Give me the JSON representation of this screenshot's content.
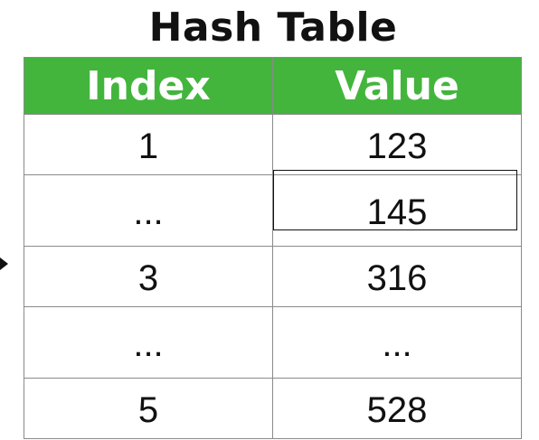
{
  "title": "Hash Table",
  "colors": {
    "header_bg": "#43b53d",
    "header_text": "#ffffff",
    "border": "#8a8a8a",
    "text": "#111111"
  },
  "table": {
    "headers": [
      "Index",
      "Value"
    ],
    "rows": [
      {
        "index": "1",
        "value": "123"
      },
      {
        "index": "...",
        "value": "145"
      },
      {
        "index": "3",
        "value": "316"
      },
      {
        "index": "...",
        "value": "..."
      },
      {
        "index": "5",
        "value": "528"
      }
    ],
    "highlighted_cell": {
      "row": 2,
      "column": "Value"
    },
    "pointer_row": 3
  }
}
